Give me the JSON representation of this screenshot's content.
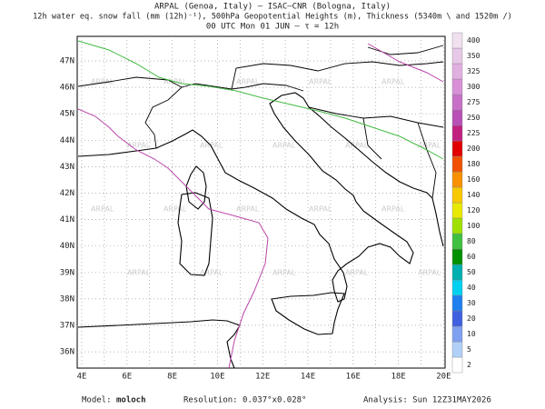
{
  "header": {
    "line1": "ARPAL (Genoa, Italy)  –  ISAC–CNR (Bologna, Italy)",
    "line2": "12h water eq. snow fall (mm (12h)⁻¹), 500hPa Geopotential Heights (m), Thickness (5340m \\ and 1520m /)",
    "line3": "00 UTC Mon 01 JUN  –  τ = 12h"
  },
  "map": {
    "lat_labels": [
      "47N",
      "46N",
      "45N",
      "44N",
      "43N",
      "42N",
      "41N",
      "40N",
      "39N",
      "38N",
      "37N",
      "36N"
    ],
    "lon_labels": [
      "4E",
      "6E",
      "8E",
      "10E",
      "12E",
      "14E",
      "16E",
      "18E",
      "20E"
    ],
    "watermark": "ARPAL"
  },
  "colorbar": {
    "labels": [
      2,
      5,
      10,
      20,
      30,
      40,
      50,
      60,
      80,
      100,
      120,
      140,
      160,
      180,
      200,
      225,
      250,
      275,
      300,
      325,
      350,
      400
    ],
    "colors": [
      "#ffffff",
      "#b0d0f8",
      "#80a0f0",
      "#4060e0",
      "#2080f0",
      "#00d0f0",
      "#00b0b0",
      "#009000",
      "#40c040",
      "#a0e000",
      "#e8e800",
      "#f8c800",
      "#f89000",
      "#f05000",
      "#e00000",
      "#c02080",
      "#b850b8",
      "#c870c8",
      "#d890d8",
      "#e0b0e0",
      "#e8c8e8",
      "#f0e0f0"
    ]
  },
  "footer": {
    "model_label": "Model:",
    "model": "moloch",
    "resolution": "Resolution: 0.037°x0.028°",
    "analysis": "Analysis: Sun 12Z31MAY2026"
  }
}
